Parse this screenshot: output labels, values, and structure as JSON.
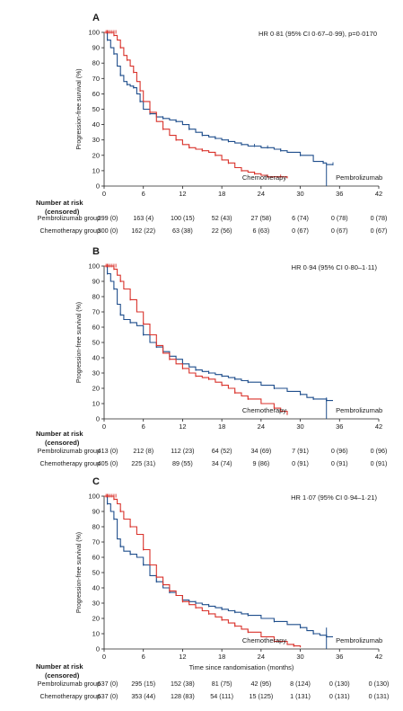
{
  "figure": {
    "ylabel": "Progression-free survival (%)",
    "xlabel": "Time since randomisation (months)",
    "risk_title": "Number at risk",
    "risk_subtitle": "(censored)"
  },
  "colors": {
    "pembrolizumab": "#1f4e8c",
    "chemotherapy": "#d9322b",
    "axis": "#222222"
  },
  "chart_data": [
    {
      "type": "line",
      "panel": "A",
      "hr_text": "HR 0·81 (95% CI 0·67–0·99), p=0·0170",
      "xlim": [
        0,
        42
      ],
      "ylim": [
        0,
        100
      ],
      "xticks": [
        0,
        6,
        12,
        18,
        24,
        30,
        36,
        42
      ],
      "yticks": [
        0,
        10,
        20,
        30,
        40,
        50,
        60,
        70,
        80,
        90,
        100
      ],
      "series": [
        {
          "name": "Pembrolizumab",
          "color": "#1f4e8c",
          "x": [
            0,
            0.5,
            1,
            1.5,
            2,
            2.5,
            3,
            3.5,
            4,
            4.5,
            5,
            5.5,
            6,
            7,
            8,
            9,
            10,
            11,
            12,
            13,
            14,
            15,
            16,
            17,
            18,
            19,
            20,
            21,
            22,
            23,
            24,
            25,
            26,
            27,
            28,
            30,
            32,
            33.5,
            34,
            35
          ],
          "y": [
            100,
            95,
            90,
            86,
            78,
            72,
            68,
            66,
            65,
            64,
            60,
            55,
            50,
            47,
            45,
            44,
            43,
            42,
            40,
            37,
            35,
            33,
            32,
            31,
            30,
            29,
            28,
            27,
            26,
            26,
            25,
            25,
            24,
            23,
            22,
            20,
            16,
            15,
            14,
            14
          ]
        },
        {
          "name": "Chemotherapy",
          "color": "#d9322b",
          "x": [
            0,
            0.5,
            1,
            1.5,
            2,
            2.5,
            3,
            3.5,
            4,
            4.5,
            5,
            5.5,
            6,
            7,
            8,
            9,
            10,
            11,
            12,
            13,
            14,
            15,
            16,
            17,
            18,
            19,
            20,
            21,
            22,
            23,
            24,
            25,
            26,
            27,
            28
          ],
          "y": [
            100,
            100,
            100,
            98,
            95,
            90,
            85,
            82,
            78,
            74,
            68,
            62,
            55,
            48,
            42,
            37,
            33,
            30,
            27,
            25,
            24,
            23,
            22,
            20,
            17,
            15,
            12,
            10,
            9,
            8,
            7,
            6,
            6,
            6,
            5
          ]
        }
      ],
      "annotations": [
        "Chemotherapy",
        "Pembrolizumab"
      ],
      "risk_table": [
        {
          "group": "Pembrolizumab group",
          "values": [
            "299 (0)",
            "163 (4)",
            "100 (15)",
            "52 (43)",
            "27 (58)",
            "6 (74)",
            "0 (78)",
            "0 (78)"
          ]
        },
        {
          "group": "Chemotherapy group",
          "values": [
            "300 (0)",
            "162 (22)",
            "63 (38)",
            "22 (56)",
            "6 (63)",
            "0 (67)",
            "0 (67)",
            "0 (67)"
          ]
        }
      ]
    },
    {
      "type": "line",
      "panel": "B",
      "hr_text": "HR 0·94 (95% CI 0·80–1·11)",
      "xlim": [
        0,
        42
      ],
      "ylim": [
        0,
        100
      ],
      "xticks": [
        0,
        6,
        12,
        18,
        24,
        30,
        36,
        42
      ],
      "yticks": [
        0,
        10,
        20,
        30,
        40,
        50,
        60,
        70,
        80,
        90,
        100
      ],
      "series": [
        {
          "name": "Pembrolizumab",
          "color": "#1f4e8c",
          "x": [
            0,
            0.5,
            1,
            1.5,
            2,
            2.5,
            3,
            4,
            5,
            6,
            7,
            8,
            9,
            10,
            11,
            12,
            13,
            14,
            15,
            16,
            17,
            18,
            19,
            20,
            21,
            22,
            24,
            26,
            28,
            30,
            31,
            32,
            33,
            34,
            35
          ],
          "y": [
            100,
            95,
            90,
            85,
            75,
            68,
            65,
            63,
            61,
            55,
            50,
            47,
            44,
            41,
            39,
            36,
            34,
            32,
            31,
            30,
            29,
            28,
            27,
            26,
            25,
            24,
            22,
            20,
            18,
            16,
            14,
            13,
            13,
            12,
            12
          ]
        },
        {
          "name": "Chemotherapy",
          "color": "#d9322b",
          "x": [
            0,
            0.5,
            1,
            1.5,
            2,
            2.5,
            3,
            4,
            5,
            6,
            7,
            8,
            9,
            10,
            11,
            12,
            13,
            14,
            15,
            16,
            17,
            18,
            19,
            20,
            21,
            22,
            24,
            26,
            27,
            28
          ],
          "y": [
            100,
            100,
            100,
            98,
            94,
            90,
            85,
            78,
            70,
            62,
            55,
            48,
            43,
            39,
            36,
            33,
            30,
            28,
            27,
            26,
            24,
            22,
            20,
            17,
            15,
            13,
            10,
            7,
            5,
            3
          ]
        }
      ],
      "annotations": [
        "Chemotherapy",
        "Pembrolizumab"
      ],
      "risk_table": [
        {
          "group": "Pembrolizumab group",
          "values": [
            "413 (0)",
            "212 (8)",
            "112 (23)",
            "64 (52)",
            "34 (69)",
            "7 (91)",
            "0 (96)",
            "0 (96)"
          ]
        },
        {
          "group": "Chemotherapy group",
          "values": [
            "405 (0)",
            "225 (31)",
            "89 (55)",
            "34 (74)",
            "9 (86)",
            "0 (91)",
            "0 (91)",
            "0 (91)"
          ]
        }
      ]
    },
    {
      "type": "line",
      "panel": "C",
      "hr_text": "HR 1·07 (95% CI 0·94–1·21)",
      "xlim": [
        0,
        42
      ],
      "ylim": [
        0,
        100
      ],
      "xticks": [
        0,
        6,
        12,
        18,
        24,
        30,
        36,
        42
      ],
      "yticks": [
        0,
        10,
        20,
        30,
        40,
        50,
        60,
        70,
        80,
        90,
        100
      ],
      "series": [
        {
          "name": "Pembrolizumab",
          "color": "#1f4e8c",
          "x": [
            0,
            0.5,
            1,
            1.5,
            2,
            2.5,
            3,
            4,
            5,
            6,
            7,
            8,
            9,
            10,
            11,
            12,
            13,
            14,
            15,
            16,
            17,
            18,
            19,
            20,
            21,
            22,
            24,
            26,
            28,
            30,
            31,
            32,
            33,
            34,
            35
          ],
          "y": [
            100,
            95,
            90,
            85,
            72,
            67,
            64,
            62,
            60,
            55,
            48,
            44,
            40,
            37,
            35,
            32,
            31,
            30,
            29,
            28,
            27,
            26,
            25,
            24,
            23,
            22,
            20,
            18,
            16,
            14,
            12,
            10,
            9,
            8,
            8
          ]
        },
        {
          "name": "Chemotherapy",
          "color": "#d9322b",
          "x": [
            0,
            0.5,
            1,
            1.5,
            2,
            2.5,
            3,
            4,
            5,
            6,
            7,
            8,
            9,
            10,
            11,
            12,
            13,
            14,
            15,
            16,
            17,
            18,
            19,
            20,
            21,
            22,
            24,
            26,
            28,
            29,
            30
          ],
          "y": [
            100,
            100,
            100,
            98,
            95,
            90,
            85,
            80,
            75,
            65,
            55,
            47,
            42,
            38,
            35,
            31,
            29,
            27,
            25,
            23,
            21,
            19,
            17,
            15,
            13,
            11,
            8,
            5,
            3,
            2,
            1
          ]
        }
      ],
      "annotations": [
        "Chemotherapy",
        "Pembrolizumab"
      ],
      "risk_table": [
        {
          "group": "Pembrolizumab group",
          "values": [
            "637 (0)",
            "295 (15)",
            "152 (38)",
            "81 (75)",
            "42 (95)",
            "8 (124)",
            "0 (130)",
            "0 (130)"
          ]
        },
        {
          "group": "Chemotherapy group",
          "values": [
            "637 (0)",
            "353 (44)",
            "128 (83)",
            "54 (111)",
            "15 (125)",
            "1 (131)",
            "0 (131)",
            "0 (131)"
          ]
        }
      ]
    }
  ]
}
